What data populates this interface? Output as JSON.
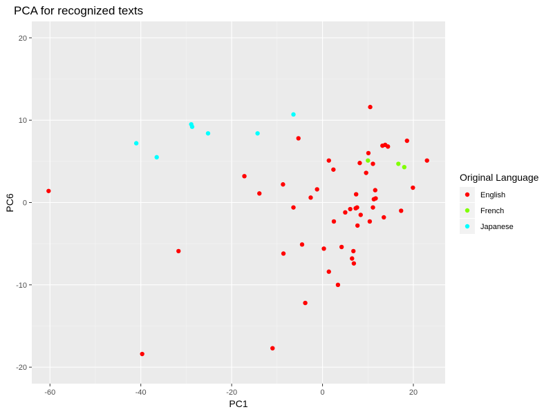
{
  "chart_data": {
    "type": "scatter",
    "title": "PCA for recognized texts",
    "xlabel": "PC1",
    "ylabel": "PC6",
    "xlim": [
      -64,
      27
    ],
    "ylim": [
      -22,
      22
    ],
    "x_ticks": [
      -60,
      -40,
      -20,
      0,
      20
    ],
    "y_ticks": [
      -20,
      -10,
      0,
      10,
      20
    ],
    "x_tick_labels": [
      "-60",
      "-40",
      "-20",
      "0",
      "20"
    ],
    "y_tick_labels": [
      "-20",
      "-10",
      "0",
      "10",
      "20"
    ],
    "grid": true,
    "legend": {
      "title": "Original Language",
      "position": "right"
    },
    "series": [
      {
        "name": "English",
        "color": "#ff0000",
        "points": [
          [
            -60.3,
            1.4
          ],
          [
            -39.7,
            -18.4
          ],
          [
            -31.7,
            -5.9
          ],
          [
            -17.2,
            3.2
          ],
          [
            -13.9,
            1.1
          ],
          [
            -11,
            -17.7
          ],
          [
            -8.7,
            2.2
          ],
          [
            -8.6,
            -6.2
          ],
          [
            -6.4,
            -0.6
          ],
          [
            -5.3,
            7.8
          ],
          [
            -4.5,
            -5.1
          ],
          [
            -3.8,
            -12.2
          ],
          [
            -2.6,
            0.6
          ],
          [
            -1.2,
            1.6
          ],
          [
            0.3,
            -5.6
          ],
          [
            1.4,
            -8.4
          ],
          [
            1.4,
            5.1
          ],
          [
            2.4,
            4.0
          ],
          [
            2.5,
            -2.3
          ],
          [
            3.4,
            -10
          ],
          [
            4.2,
            -5.4
          ],
          [
            5.0,
            -1.2
          ],
          [
            6.1,
            -0.8
          ],
          [
            6.5,
            -6.8
          ],
          [
            6.8,
            -5.9
          ],
          [
            6.9,
            -7.4
          ],
          [
            7.3,
            -0.7
          ],
          [
            7.4,
            1.0
          ],
          [
            7.6,
            -0.6
          ],
          [
            7.7,
            -2.8
          ],
          [
            8.2,
            4.8
          ],
          [
            8.4,
            -1.5
          ],
          [
            9.6,
            3.6
          ],
          [
            10.1,
            6.0
          ],
          [
            10.4,
            -2.3
          ],
          [
            10.5,
            11.6
          ],
          [
            11.1,
            4.7
          ],
          [
            11.1,
            -0.6
          ],
          [
            11.3,
            0.4
          ],
          [
            11.6,
            1.5
          ],
          [
            11.7,
            0.5
          ],
          [
            13.2,
            6.9
          ],
          [
            13.5,
            -1.8
          ],
          [
            13.8,
            7.0
          ],
          [
            14.4,
            6.8
          ],
          [
            17.3,
            -1.0
          ],
          [
            18.6,
            7.5
          ],
          [
            19.9,
            1.8
          ],
          [
            23.0,
            5.1
          ]
        ]
      },
      {
        "name": "French",
        "color": "#80ff00",
        "points": [
          [
            10.0,
            5.1
          ],
          [
            16.7,
            4.7
          ],
          [
            18.0,
            4.3
          ]
        ]
      },
      {
        "name": "Japanese",
        "color": "#00ffff",
        "points": [
          [
            -41.0,
            7.2
          ],
          [
            -36.5,
            5.5
          ],
          [
            -28.9,
            9.5
          ],
          [
            -28.7,
            9.2
          ],
          [
            -25.2,
            8.4
          ],
          [
            -14.3,
            8.4
          ],
          [
            -6.4,
            10.7
          ]
        ]
      }
    ]
  }
}
